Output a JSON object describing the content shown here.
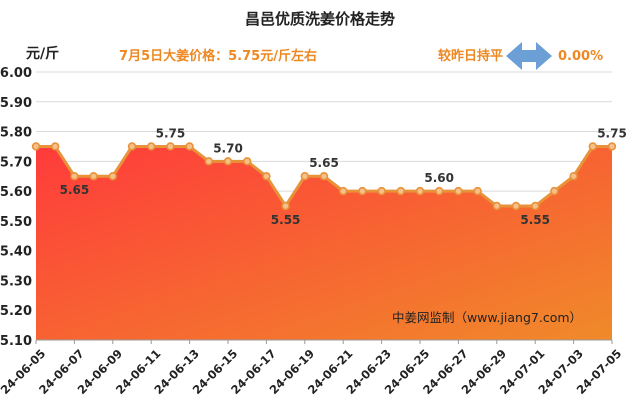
{
  "chart_data": {
    "type": "area",
    "title": "昌邑优质洗姜价格走势",
    "ylabel": "元/斤",
    "ylim": [
      5.1,
      6.0
    ],
    "yticks": [
      "6.00",
      "5.90",
      "5.80",
      "5.70",
      "5.60",
      "5.50",
      "5.40",
      "5.30",
      "5.20",
      "5.10"
    ],
    "xtick_labels": [
      "24-06-05",
      "24-06-07",
      "24-06-09",
      "24-06-11",
      "24-06-13",
      "24-06-15",
      "24-06-17",
      "24-06-19",
      "24-06-21",
      "24-06-23",
      "24-06-25",
      "24-06-27",
      "24-06-29",
      "24-07-01",
      "24-07-03",
      "24-07-05"
    ],
    "x": [
      "24-06-05",
      "24-06-06",
      "24-06-07",
      "24-06-08",
      "24-06-09",
      "24-06-10",
      "24-06-11",
      "24-06-12",
      "24-06-13",
      "24-06-14",
      "24-06-15",
      "24-06-16",
      "24-06-17",
      "24-06-18",
      "24-06-19",
      "24-06-20",
      "24-06-21",
      "24-06-22",
      "24-06-23",
      "24-06-24",
      "24-06-25",
      "24-06-26",
      "24-06-27",
      "24-06-28",
      "24-06-29",
      "24-06-30",
      "24-07-01",
      "24-07-02",
      "24-07-03",
      "24-07-04",
      "24-07-05"
    ],
    "values": [
      5.75,
      5.75,
      5.65,
      5.65,
      5.65,
      5.75,
      5.75,
      5.75,
      5.75,
      5.7,
      5.7,
      5.7,
      5.65,
      5.55,
      5.65,
      5.65,
      5.6,
      5.6,
      5.6,
      5.6,
      5.6,
      5.6,
      5.6,
      5.6,
      5.55,
      5.55,
      5.55,
      5.6,
      5.65,
      5.75,
      5.75
    ],
    "data_labels": [
      {
        "index": 2,
        "text": "5.65",
        "pos": "below"
      },
      {
        "index": 7,
        "text": "5.75",
        "pos": "above"
      },
      {
        "index": 10,
        "text": "5.70",
        "pos": "above"
      },
      {
        "index": 13,
        "text": "5.55",
        "pos": "below"
      },
      {
        "index": 15,
        "text": "5.65",
        "pos": "above"
      },
      {
        "index": 21,
        "text": "5.60",
        "pos": "above"
      },
      {
        "index": 26,
        "text": "5.55",
        "pos": "below"
      },
      {
        "index": 30,
        "text": "5.75",
        "pos": "above"
      }
    ],
    "grid": true,
    "colors": {
      "line": "#e8923a",
      "marker_edge": "#e8923a",
      "marker_fill": "#f5c08a",
      "area_top": "#ff3b3b",
      "area_bottom": "#f08a2a",
      "arrow": "#6b9fd6",
      "annotation": "#ee8822"
    }
  },
  "annotations": {
    "price_note": "7月5日大姜价格：5.75元/斤左右",
    "compare_label": "较昨日持平",
    "compare_value": "0.00%",
    "watermark": "中姜网监制（www.jiang7.com）"
  }
}
